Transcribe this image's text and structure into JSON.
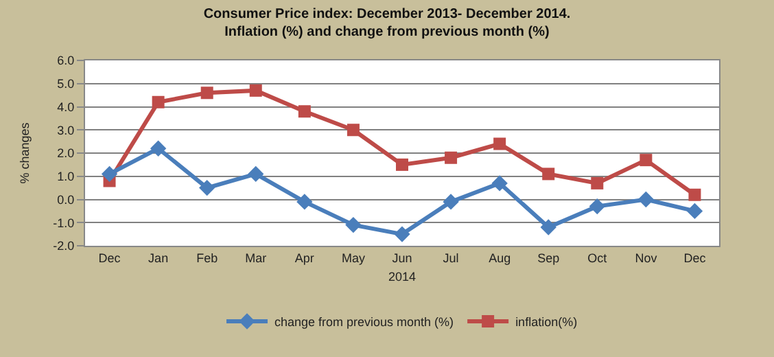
{
  "chart_data": {
    "type": "line",
    "title": "Consumer Price index: December 2013- December 2014.\nInflation (%) and change from previous month (%)",
    "ylabel": "% changes",
    "xlabel": "2014",
    "categories": [
      "Dec",
      "Jan",
      "Feb",
      "Mar",
      "Apr",
      "May",
      "Jun",
      "Jul",
      "Aug",
      "Sep",
      "Oct",
      "Nov",
      "Dec"
    ],
    "series": [
      {
        "name": "change from previous month (%)",
        "color": "#4a7ebb",
        "marker": "diamond",
        "values": [
          1.1,
          2.2,
          0.5,
          1.1,
          -0.1,
          -1.1,
          -1.5,
          -0.1,
          0.7,
          -1.2,
          -0.3,
          0.0,
          -0.5
        ]
      },
      {
        "name": "inflation(%)",
        "color": "#be4b48",
        "marker": "square",
        "values": [
          0.8,
          4.2,
          4.6,
          4.7,
          3.8,
          3.0,
          1.5,
          1.8,
          2.4,
          1.1,
          0.7,
          1.7,
          0.2
        ]
      }
    ],
    "ylim": [
      -2,
      6
    ],
    "yticks": [
      {
        "value": -2,
        "label": "-2.0"
      },
      {
        "value": -1,
        "label": "-1.0"
      },
      {
        "value": 0,
        "label": "0.0"
      },
      {
        "value": 1,
        "label": "1.0"
      },
      {
        "value": 2,
        "label": "2.0"
      },
      {
        "value": 3,
        "label": "3.0"
      },
      {
        "value": 4,
        "label": "4.0"
      },
      {
        "value": 5,
        "label": "5.0"
      },
      {
        "value": 6,
        "label": "6.0"
      }
    ],
    "grid": "y",
    "legend": "bottom",
    "line_style": "solid"
  }
}
